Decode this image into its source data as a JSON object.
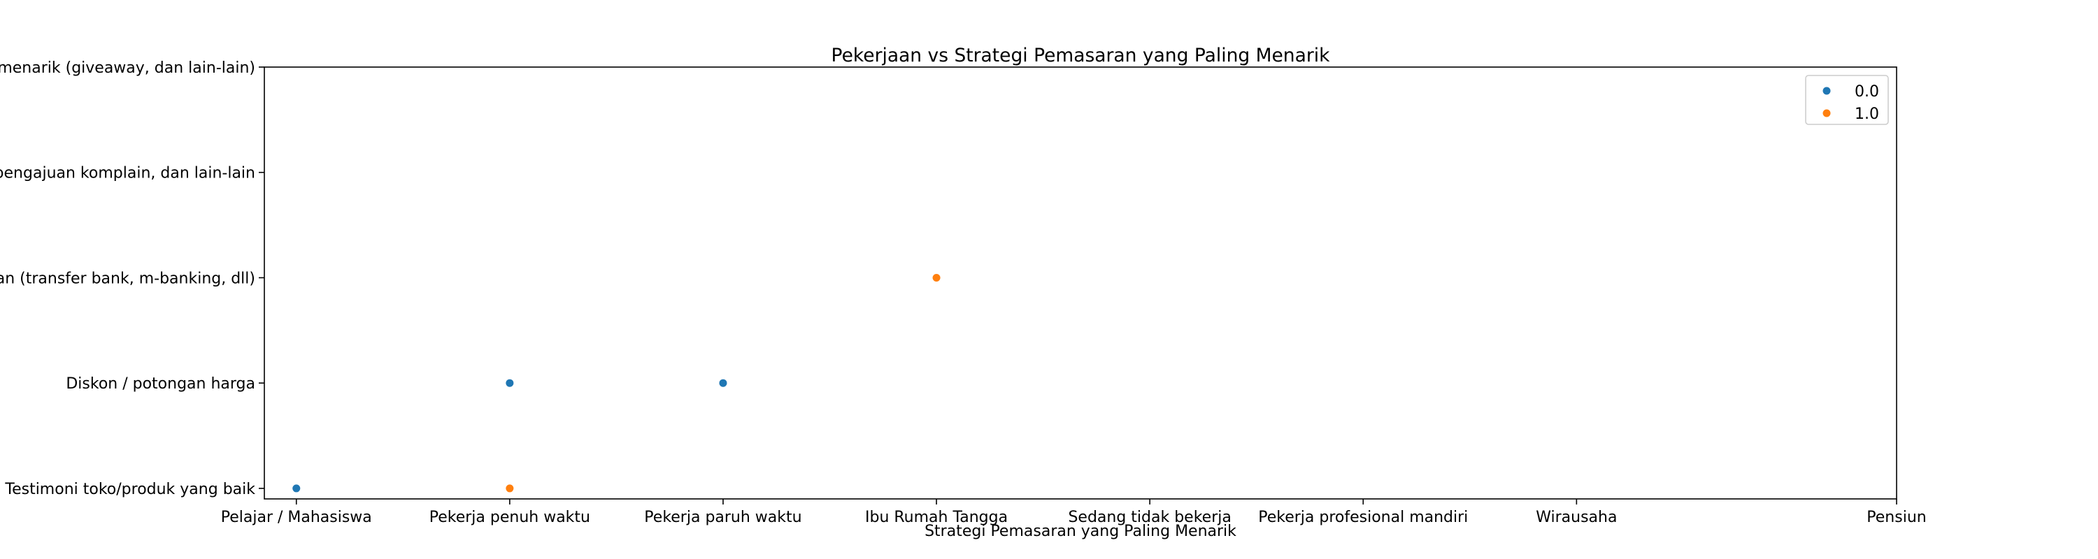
{
  "chart_data": {
    "type": "scatter",
    "title": "Pekerjaan vs Strategi Pemasaran yang Paling Menarik",
    "xlabel": "Strategi Pemasaran yang Paling Menarik",
    "ylabel": "",
    "x_categories": [
      "Pelajar / Mahasiswa",
      "Pekerja penuh waktu",
      "Pekerja paruh waktu",
      "Ibu Rumah Tangga",
      "Sedang tidak bekerja",
      "Pekerja profesional mandiri",
      "Wirausaha",
      "Pensiun"
    ],
    "x_tick_positions": [
      0,
      1,
      2,
      3,
      4,
      5,
      6,
      7.5
    ],
    "x_range": [
      -0.15,
      7.5
    ],
    "y_categories": [
      "Testimoni toko/produk yang baik",
      "Diskon / potongan harga",
      "Kemudahan metode pembayaran (transfer bank, m-banking, dll)",
      "Pelayanan pelanggan yang baik, pengajuan komplain, dan lain-lain",
      "Promosi yang menarik (giveaway, dan lain-lain)"
    ],
    "y_range": [
      -0.1,
      4
    ],
    "legend_position": "upper right",
    "series": [
      {
        "name": "0.0",
        "color": "#1f77b4",
        "points": [
          {
            "x": "Pelajar / Mahasiswa",
            "y": "Testimoni toko/produk yang baik"
          },
          {
            "x": "Pekerja penuh waktu",
            "y": "Diskon / potongan harga"
          },
          {
            "x": "Pekerja paruh waktu",
            "y": "Diskon / potongan harga"
          }
        ]
      },
      {
        "name": "1.0",
        "color": "#ff7f0e",
        "points": [
          {
            "x": "Pekerja penuh waktu",
            "y": "Testimoni toko/produk yang baik"
          },
          {
            "x": "Ibu Rumah Tangga",
            "y": "Kemudahan metode pembayaran (transfer bank, m-banking, dll)"
          }
        ]
      }
    ]
  }
}
